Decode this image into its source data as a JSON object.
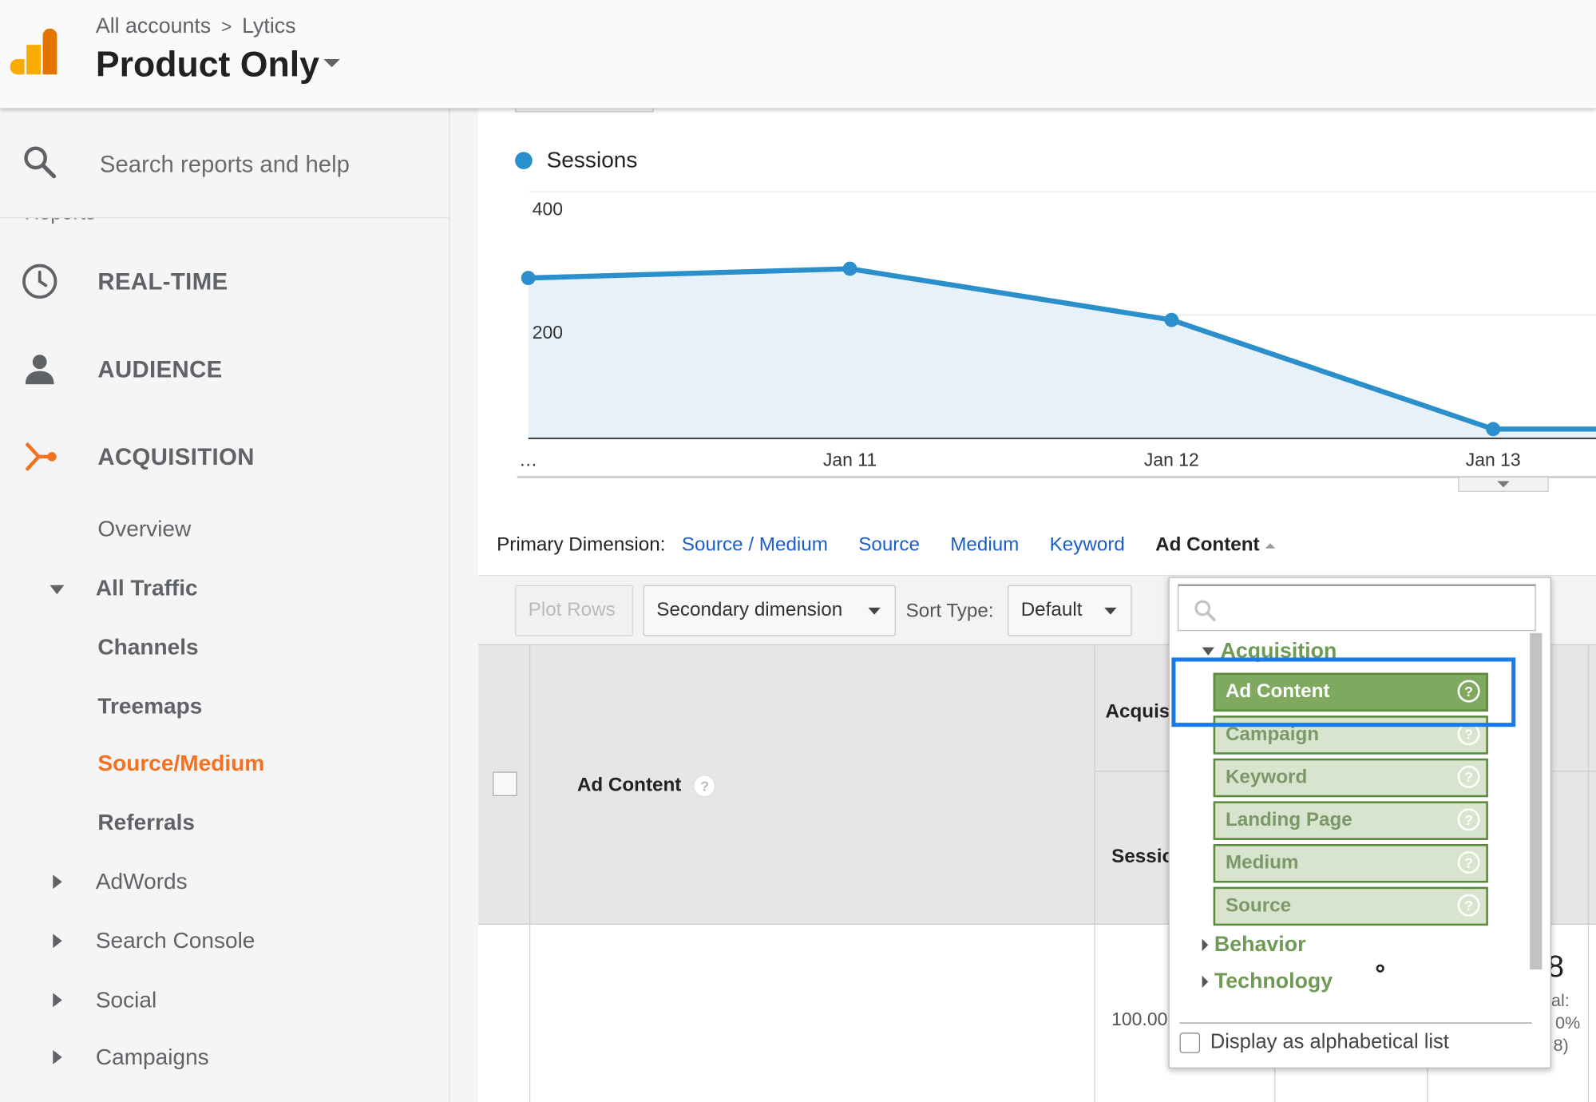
{
  "header": {
    "breadcrumb": [
      "All accounts",
      "Lytics"
    ],
    "breadcrumb_sep": ">",
    "view_title": "Product Only"
  },
  "sidebar": {
    "search_placeholder": "Search reports and help",
    "reports_peek": "Reports",
    "main_items": [
      {
        "label": "REAL-TIME",
        "icon": "clock-icon"
      },
      {
        "label": "AUDIENCE",
        "icon": "person-icon"
      },
      {
        "label": "ACQUISITION",
        "icon": "acquisition-icon"
      }
    ],
    "acquisition_sub": {
      "overview": "Overview",
      "all_traffic": "All Traffic",
      "all_traffic_children": [
        "Channels",
        "Treemaps",
        "Source/Medium",
        "Referrals"
      ],
      "active": "Source/Medium",
      "collapsed": [
        "AdWords",
        "Search Console",
        "Social",
        "Campaigns"
      ]
    }
  },
  "chart_data": {
    "type": "area",
    "series": [
      {
        "name": "Sessions",
        "values": [
          260,
          275,
          192,
          15,
          15
        ]
      }
    ],
    "x": [
      "…",
      "Jan 11",
      "Jan 12",
      "Jan 13",
      ""
    ],
    "y_ticks": [
      400,
      200
    ],
    "ylim": [
      0,
      400
    ],
    "color": "#2b8fcb",
    "fill": "#e6f1fa",
    "grid": true,
    "legend_position": "top-left"
  },
  "primary_dimension": {
    "label": "Primary Dimension:",
    "links": [
      "Source / Medium",
      "Source",
      "Medium",
      "Keyword"
    ],
    "current": "Ad Content"
  },
  "toolbar": {
    "plot_rows": "Plot Rows",
    "secondary_dimension": "Secondary dimension",
    "sort_type_label": "Sort Type:",
    "sort_type_value": "Default"
  },
  "table": {
    "dimension_header": "Ad Content",
    "group_header": "Acquis",
    "metric_header": "Sessio",
    "pct_value": "100.00",
    "big_number": "8",
    "side_fragments": [
      "al:",
      "0%",
      "8)"
    ]
  },
  "dropdown": {
    "categories": [
      "Acquisition",
      "Behavior",
      "Technology"
    ],
    "items": [
      "Ad Content",
      "Campaign",
      "Keyword",
      "Landing Page",
      "Medium",
      "Source"
    ],
    "selected": "Ad Content",
    "help_glyph": "?",
    "alphabetical_label": "Display as alphabetical list"
  },
  "colors": {
    "accent_orange": "#f4711f",
    "link_blue": "#1a5fc8",
    "chart_blue": "#2b8fcb",
    "dropdown_green": "#80a960",
    "highlight_blue": "#1a7ae8"
  }
}
